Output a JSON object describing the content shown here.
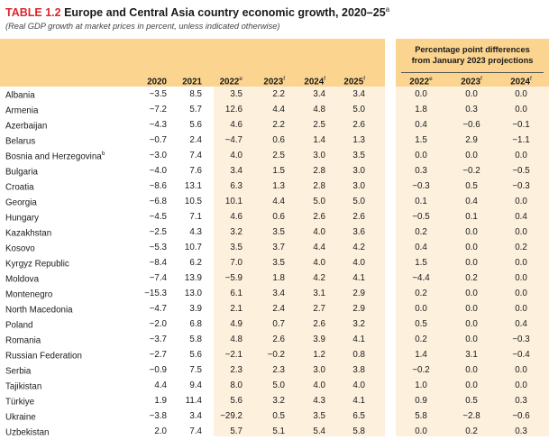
{
  "title": {
    "tag": "TABLE 1.2",
    "text": "Europe and Central Asia country economic growth, 2020–25",
    "sup": "a"
  },
  "subtitle": "(Real GDP growth at market prices in percent, unless indicated otherwise)",
  "table": {
    "pp_title_line1": "Percentage point differences",
    "pp_title_line2": "from January 2023 projections",
    "columns": [
      {
        "year": "2020",
        "sup": ""
      },
      {
        "year": "2021",
        "sup": ""
      },
      {
        "year": "2022",
        "sup": "e"
      },
      {
        "year": "2023",
        "sup": "f"
      },
      {
        "year": "2024",
        "sup": "f"
      },
      {
        "year": "2025",
        "sup": "f"
      }
    ],
    "pp_columns": [
      {
        "year": "2022",
        "sup": "e"
      },
      {
        "year": "2023",
        "sup": "f"
      },
      {
        "year": "2024",
        "sup": "f"
      }
    ],
    "rows": [
      {
        "country": "Albania",
        "sup": "",
        "values": [
          "−3.5",
          "8.5",
          "3.5",
          "2.2",
          "3.4",
          "3.4"
        ],
        "pp": [
          "0.0",
          "0.0",
          "0.0"
        ]
      },
      {
        "country": "Armenia",
        "sup": "",
        "values": [
          "−7.2",
          "5.7",
          "12.6",
          "4.4",
          "4.8",
          "5.0"
        ],
        "pp": [
          "1.8",
          "0.3",
          "0.0"
        ]
      },
      {
        "country": "Azerbaijan",
        "sup": "",
        "values": [
          "−4.3",
          "5.6",
          "4.6",
          "2.2",
          "2.5",
          "2.6"
        ],
        "pp": [
          "0.4",
          "−0.6",
          "−0.1"
        ]
      },
      {
        "country": "Belarus",
        "sup": "",
        "values": [
          "−0.7",
          "2.4",
          "−4.7",
          "0.6",
          "1.4",
          "1.3"
        ],
        "pp": [
          "1.5",
          "2.9",
          "−1.1"
        ]
      },
      {
        "country": "Bosnia and Herzegovina",
        "sup": "b",
        "values": [
          "−3.0",
          "7.4",
          "4.0",
          "2.5",
          "3.0",
          "3.5"
        ],
        "pp": [
          "0.0",
          "0.0",
          "0.0"
        ]
      },
      {
        "country": "Bulgaria",
        "sup": "",
        "values": [
          "−4.0",
          "7.6",
          "3.4",
          "1.5",
          "2.8",
          "3.0"
        ],
        "pp": [
          "0.3",
          "−0.2",
          "−0.5"
        ]
      },
      {
        "country": "Croatia",
        "sup": "",
        "values": [
          "−8.6",
          "13.1",
          "6.3",
          "1.3",
          "2.8",
          "3.0"
        ],
        "pp": [
          "−0.3",
          "0.5",
          "−0.3"
        ]
      },
      {
        "country": "Georgia",
        "sup": "",
        "values": [
          "−6.8",
          "10.5",
          "10.1",
          "4.4",
          "5.0",
          "5.0"
        ],
        "pp": [
          "0.1",
          "0.4",
          "0.0"
        ]
      },
      {
        "country": "Hungary",
        "sup": "",
        "values": [
          "−4.5",
          "7.1",
          "4.6",
          "0.6",
          "2.6",
          "2.6"
        ],
        "pp": [
          "−0.5",
          "0.1",
          "0.4"
        ]
      },
      {
        "country": "Kazakhstan",
        "sup": "",
        "values": [
          "−2.5",
          "4.3",
          "3.2",
          "3.5",
          "4.0",
          "3.6"
        ],
        "pp": [
          "0.2",
          "0.0",
          "0.0"
        ]
      },
      {
        "country": "Kosovo",
        "sup": "",
        "values": [
          "−5.3",
          "10.7",
          "3.5",
          "3.7",
          "4.4",
          "4.2"
        ],
        "pp": [
          "0.4",
          "0.0",
          "0.2"
        ]
      },
      {
        "country": "Kyrgyz Republic",
        "sup": "",
        "values": [
          "−8.4",
          "6.2",
          "7.0",
          "3.5",
          "4.0",
          "4.0"
        ],
        "pp": [
          "1.5",
          "0.0",
          "0.0"
        ]
      },
      {
        "country": "Moldova",
        "sup": "",
        "values": [
          "−7.4",
          "13.9",
          "−5.9",
          "1.8",
          "4.2",
          "4.1"
        ],
        "pp": [
          "−4.4",
          "0.2",
          "0.0"
        ]
      },
      {
        "country": "Montenegro",
        "sup": "",
        "values": [
          "−15.3",
          "13.0",
          "6.1",
          "3.4",
          "3.1",
          "2.9"
        ],
        "pp": [
          "0.2",
          "0.0",
          "0.0"
        ]
      },
      {
        "country": "North Macedonia",
        "sup": "",
        "values": [
          "−4.7",
          "3.9",
          "2.1",
          "2.4",
          "2.7",
          "2.9"
        ],
        "pp": [
          "0.0",
          "0.0",
          "0.0"
        ]
      },
      {
        "country": "Poland",
        "sup": "",
        "values": [
          "−2.0",
          "6.8",
          "4.9",
          "0.7",
          "2.6",
          "3.2"
        ],
        "pp": [
          "0.5",
          "0.0",
          "0.4"
        ]
      },
      {
        "country": "Romania",
        "sup": "",
        "values": [
          "−3.7",
          "5.8",
          "4.8",
          "2.6",
          "3.9",
          "4.1"
        ],
        "pp": [
          "0.2",
          "0.0",
          "−0.3"
        ]
      },
      {
        "country": "Russian Federation",
        "sup": "",
        "values": [
          "−2.7",
          "5.6",
          "−2.1",
          "−0.2",
          "1.2",
          "0.8"
        ],
        "pp": [
          "1.4",
          "3.1",
          "−0.4"
        ]
      },
      {
        "country": "Serbia",
        "sup": "",
        "values": [
          "−0.9",
          "7.5",
          "2.3",
          "2.3",
          "3.0",
          "3.8"
        ],
        "pp": [
          "−0.2",
          "0.0",
          "0.0"
        ]
      },
      {
        "country": "Tajikistan",
        "sup": "",
        "values": [
          "4.4",
          "9.4",
          "8.0",
          "5.0",
          "4.0",
          "4.0"
        ],
        "pp": [
          "1.0",
          "0.0",
          "0.0"
        ]
      },
      {
        "country": "Türkiye",
        "sup": "",
        "values": [
          "1.9",
          "11.4",
          "5.6",
          "3.2",
          "4.3",
          "4.1"
        ],
        "pp": [
          "0.9",
          "0.5",
          "0.3"
        ]
      },
      {
        "country": "Ukraine",
        "sup": "",
        "values": [
          "−3.8",
          "3.4",
          "−29.2",
          "0.5",
          "3.5",
          "6.5"
        ],
        "pp": [
          "5.8",
          "−2.8",
          "−0.6"
        ]
      },
      {
        "country": "Uzbekistan",
        "sup": "",
        "values": [
          "2.0",
          "7.4",
          "5.7",
          "5.1",
          "5.4",
          "5.8"
        ],
        "pp": [
          "0.0",
          "0.2",
          "0.3"
        ]
      }
    ]
  }
}
